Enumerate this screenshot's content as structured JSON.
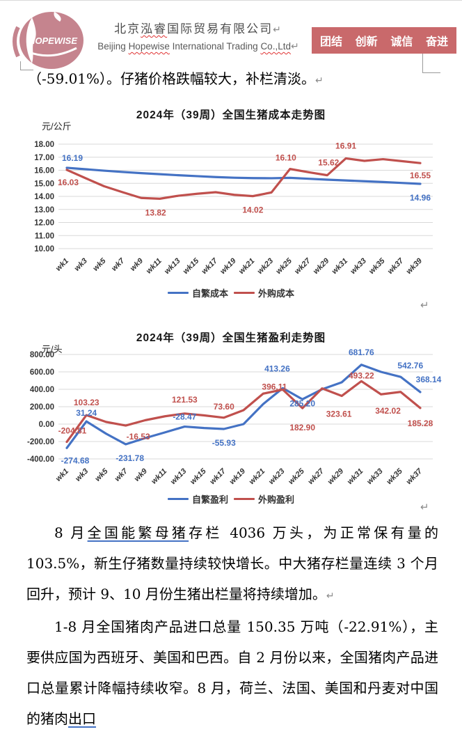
{
  "header": {
    "logo_text": "HOPEWISE",
    "company_cn_segments": [
      {
        "t": "北京"
      },
      {
        "t": "泓睿",
        "sq": true
      },
      {
        "t": "国际贸易有限公司"
      }
    ],
    "company_en_segments": [
      {
        "t": "Beijing "
      },
      {
        "t": "Hopewise",
        "sq": true
      },
      {
        "t": " International Trading "
      },
      {
        "t": "Co.,Ltd",
        "sq": true
      }
    ],
    "banner": {
      "words": [
        "团结",
        "创新",
        "诚信",
        "奋进"
      ],
      "color": "#C9696B"
    }
  },
  "marks": {
    "pilcrow": "↵"
  },
  "intro_line": "（-59.01%）。仔猪价格跌幅较大，补栏清淡。",
  "colors": {
    "series_blue": "#4472C4",
    "series_red": "#C0504D",
    "grid": "#D8D8D8"
  },
  "chart_data": [
    {
      "type": "line",
      "title": "2024年（39周）全国生猪成本走势图",
      "unit": "元/公斤",
      "ylabel": "元/公斤",
      "ylim": [
        10,
        18
      ],
      "grid": true,
      "legend_position": "bottom",
      "y_ticks": [
        "18.00",
        "17.00",
        "16.00",
        "15.00",
        "14.00",
        "13.00",
        "12.00",
        "11.00",
        "10.00"
      ],
      "categories": [
        "wk1",
        "wk3",
        "wk5",
        "wk7",
        "wk9",
        "wk11",
        "wk13",
        "wk15",
        "wk17",
        "wk19",
        "wk21",
        "wk23",
        "wk25",
        "wk27",
        "wk29",
        "wk31",
        "wk33",
        "wk35",
        "wk37",
        "wk39"
      ],
      "series": [
        {
          "name": "自繁成本",
          "color": "#4472C4",
          "values": [
            16.19,
            16.08,
            15.97,
            15.87,
            15.78,
            15.7,
            15.62,
            15.55,
            15.48,
            15.43,
            15.4,
            15.39,
            15.42,
            15.35,
            15.28,
            15.22,
            15.16,
            15.1,
            15.03,
            14.96
          ],
          "labels": [
            {
              "i": 0,
              "t": "16.19",
              "pos": "above",
              "dx": 8,
              "dy": -2
            },
            {
              "i": 19,
              "t": "14.96",
              "pos": "below",
              "dy": 8
            }
          ]
        },
        {
          "name": "外购成本",
          "color": "#C0504D",
          "values": [
            16.03,
            15.4,
            14.78,
            14.32,
            13.88,
            13.82,
            14.05,
            14.2,
            14.32,
            14.12,
            14.02,
            14.3,
            16.1,
            15.85,
            15.62,
            16.91,
            16.72,
            16.85,
            16.7,
            16.55
          ],
          "labels": [
            {
              "i": 0,
              "t": "16.03",
              "pos": "below",
              "dx": 2,
              "dy": 6
            },
            {
              "i": 5,
              "t": "13.82",
              "pos": "below",
              "dx": -6,
              "dy": 8
            },
            {
              "i": 10,
              "t": "14.02",
              "pos": "below",
              "dy": 8
            },
            {
              "i": 12,
              "t": "16.10",
              "pos": "above",
              "dx": -6,
              "dy": -4
            },
            {
              "i": 14,
              "t": "15.62",
              "pos": "above",
              "dx": 2,
              "dy": -6
            },
            {
              "i": 15,
              "t": "16.91",
              "pos": "above",
              "dy": -6
            },
            {
              "i": 19,
              "t": "16.55",
              "pos": "below",
              "dy": 6
            }
          ]
        }
      ]
    },
    {
      "type": "line",
      "title": "2024年（39周）全国生猪盈利走势图",
      "unit": "元/头",
      "ylabel": "元/头",
      "ylim": [
        -400,
        800
      ],
      "grid": true,
      "legend_position": "bottom",
      "y_ticks": [
        "800.00",
        "600.00",
        "400.00",
        "200.00",
        "0.00",
        "-200.00",
        "-400.00"
      ],
      "categories": [
        "wk1",
        "wk3",
        "wk5",
        "wk7",
        "wk9",
        "wk11",
        "wk13",
        "wk15",
        "wk17",
        "wk19",
        "wk21",
        "wk23",
        "wk25",
        "wk27",
        "wk29",
        "wk31",
        "wk33",
        "wk35",
        "wk37"
      ],
      "series": [
        {
          "name": "自繁盈利",
          "color": "#4472C4",
          "values": [
            -274.68,
            31.24,
            -110,
            -231.78,
            -160,
            -95,
            -28.47,
            -45,
            -55.93,
            0,
            230,
            413.26,
            285.2,
            400,
            480,
            681.76,
            600,
            542.76,
            368.14
          ],
          "labels": [
            {
              "i": 0,
              "t": "-274.68",
              "pos": "below",
              "dx": 12,
              "dy": 6
            },
            {
              "i": 1,
              "t": "31.24",
              "pos": "above",
              "dy": 0
            },
            {
              "i": 3,
              "t": "-231.78",
              "pos": "below",
              "dx": 6,
              "dy": 8
            },
            {
              "i": 6,
              "t": "-28.47",
              "pos": "above",
              "dy": -2
            },
            {
              "i": 8,
              "t": "-55.93",
              "pos": "below",
              "dy": 8
            },
            {
              "i": 11,
              "t": "413.26",
              "pos": "above",
              "dx": -8,
              "dy": -16
            },
            {
              "i": 12,
              "t": "285.20",
              "pos": "below",
              "dy": -6
            },
            {
              "i": 15,
              "t": "681.76",
              "pos": "above",
              "dy": -6
            },
            {
              "i": 17,
              "t": "542.76",
              "pos": "above",
              "dx": 14,
              "dy": -4
            },
            {
              "i": 18,
              "t": "368.14",
              "pos": "above",
              "dx": 12,
              "dy": -6
            }
          ]
        },
        {
          "name": "外购盈利",
          "color": "#C0504D",
          "values": [
            -204.81,
            103.23,
            25,
            -16.53,
            45,
            90,
            121.53,
            100,
            73.6,
            160,
            350,
            396.11,
            182.9,
            410,
            323.61,
            493.22,
            342.02,
            370,
            185.28
          ],
          "labels": [
            {
              "i": 0,
              "t": "-204.81",
              "pos": "above",
              "dx": 8,
              "dy": -4
            },
            {
              "i": 1,
              "t": "103.23",
              "pos": "above",
              "dy": -6
            },
            {
              "i": 3,
              "t": "-16.53",
              "pos": "below",
              "dx": 18,
              "dy": 4
            },
            {
              "i": 6,
              "t": "121.53",
              "pos": "above",
              "dy": -8
            },
            {
              "i": 8,
              "t": "73.60",
              "pos": "above",
              "dy": -4
            },
            {
              "i": 11,
              "t": "396.11",
              "pos": "above",
              "dx": -12,
              "dy": 8
            },
            {
              "i": 12,
              "t": "182.90",
              "pos": "below",
              "dy": 16
            },
            {
              "i": 14,
              "t": "323.61",
              "pos": "below",
              "dx": -4,
              "dy": 14
            },
            {
              "i": 15,
              "t": "493.22",
              "pos": "above",
              "dy": 4
            },
            {
              "i": 16,
              "t": "342.02",
              "pos": "below",
              "dx": 10,
              "dy": 12
            },
            {
              "i": 18,
              "t": "185.28",
              "pos": "below",
              "dy": 10
            }
          ]
        }
      ]
    }
  ],
  "paragraphs": [
    {
      "segments": [
        {
          "t": "8 月"
        },
        {
          "t": "全国能繁母猪",
          "u": true
        },
        {
          "t": "存栏 4036 万头，为正常保有量的 103.5%，新生仔猪数量持续较快增长。中大猪存栏量连续 3 个月回升，预计 9、10 月份生猪出栏量将持续增加。"
        }
      ],
      "pilcrow": true
    },
    {
      "segments": [
        {
          "t": "1-8 月全国猪肉产品进口总量 150.35 万吨（-22.91%），主要供应国为西班牙、美国和巴西。自 2 月份以来，全国猪肉产品进口总量累计降幅持续收窄。8 月，荷兰、法国、美国和丹麦对中国的猪肉"
        },
        {
          "t": "出口",
          "u": true
        }
      ],
      "pilcrow": false
    }
  ]
}
